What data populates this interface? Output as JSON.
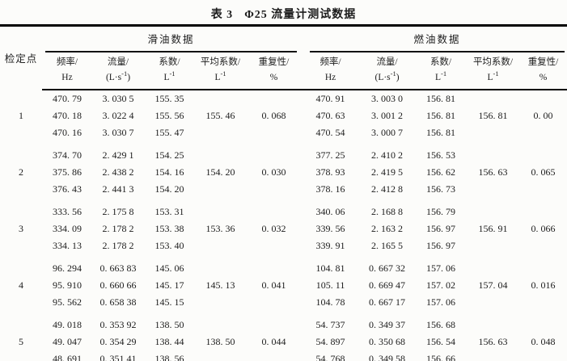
{
  "title": {
    "label": "表 3",
    "text": "Φ25 流量计测试数据"
  },
  "table": {
    "corner_header": "检定点",
    "group_headers": [
      "滑油数据",
      "燃油数据"
    ],
    "sub_headers": [
      {
        "top": "频率/",
        "base": "Hz",
        "exp": "",
        "post": ""
      },
      {
        "top": "流量/",
        "base": "(L·s",
        "exp": "-1",
        "post": ")"
      },
      {
        "top": "系数/",
        "base": "L",
        "exp": "-1",
        "post": ""
      },
      {
        "top": "平均系数/",
        "base": "L",
        "exp": "-1",
        "post": ""
      },
      {
        "top": "重复性/",
        "base": "%",
        "exp": "",
        "post": ""
      }
    ],
    "groups": [
      {
        "point": "1",
        "lub": {
          "rows": [
            [
              "470. 79",
              "3. 030 5",
              "155. 35"
            ],
            [
              "470. 18",
              "3. 022 4",
              "155. 56"
            ],
            [
              "470. 16",
              "3. 030 7",
              "155. 47"
            ]
          ],
          "avg": "155. 46",
          "rep": "0. 068"
        },
        "fuel": {
          "rows": [
            [
              "470. 91",
              "3. 003 0",
              "156. 81"
            ],
            [
              "470. 63",
              "3. 001 2",
              "156. 81"
            ],
            [
              "470. 54",
              "3. 000 7",
              "156. 81"
            ]
          ],
          "avg": "156. 81",
          "rep": "0. 00"
        }
      },
      {
        "point": "2",
        "lub": {
          "rows": [
            [
              "374. 70",
              "2. 429 1",
              "154. 25"
            ],
            [
              "375. 86",
              "2. 438 2",
              "154. 16"
            ],
            [
              "376. 43",
              "2. 441 3",
              "154. 20"
            ]
          ],
          "avg": "154. 20",
          "rep": "0. 030"
        },
        "fuel": {
          "rows": [
            [
              "377. 25",
              "2. 410 2",
              "156. 53"
            ],
            [
              "378. 93",
              "2. 419 5",
              "156. 62"
            ],
            [
              "378. 16",
              "2. 412 8",
              "156. 73"
            ]
          ],
          "avg": "156. 63",
          "rep": "0. 065"
        }
      },
      {
        "point": "3",
        "lub": {
          "rows": [
            [
              "333. 56",
              "2. 175 8",
              "153. 31"
            ],
            [
              "334. 09",
              "2. 178 2",
              "153. 38"
            ],
            [
              "334. 13",
              "2. 178 2",
              "153. 40"
            ]
          ],
          "avg": "153. 36",
          "rep": "0. 032"
        },
        "fuel": {
          "rows": [
            [
              "340. 06",
              "2. 168 8",
              "156. 79"
            ],
            [
              "339. 56",
              "2. 163 2",
              "156. 97"
            ],
            [
              "339. 91",
              "2. 165 5",
              "156. 97"
            ]
          ],
          "avg": "156. 91",
          "rep": "0. 066"
        }
      },
      {
        "point": "4",
        "lub": {
          "rows": [
            [
              "96. 294",
              "0. 663 83",
              "145. 06"
            ],
            [
              "95. 910",
              "0. 660 66",
              "145. 17"
            ],
            [
              "95. 562",
              "0. 658 38",
              "145. 15"
            ]
          ],
          "avg": "145. 13",
          "rep": "0. 041"
        },
        "fuel": {
          "rows": [
            [
              "104. 81",
              "0. 667 32",
              "157. 06"
            ],
            [
              "105. 11",
              "0. 669 47",
              "157. 02"
            ],
            [
              "104. 78",
              "0. 667 17",
              "157. 06"
            ]
          ],
          "avg": "157. 04",
          "rep": "0. 016"
        }
      },
      {
        "point": "5",
        "lub": {
          "rows": [
            [
              "49. 018",
              "0. 353 92",
              "138. 50"
            ],
            [
              "49. 047",
              "0. 354 29",
              "138. 44"
            ],
            [
              "48. 691",
              "0. 351 41",
              "138. 56"
            ]
          ],
          "avg": "138. 50",
          "rep": "0. 044"
        },
        "fuel": {
          "rows": [
            [
              "54. 737",
              "0. 349 37",
              "156. 68"
            ],
            [
              "54. 897",
              "0. 350 68",
              "156. 54"
            ],
            [
              "54. 768",
              "0. 349 58",
              "156. 66"
            ]
          ],
          "avg": "156. 63",
          "rep": "0. 048"
        }
      }
    ]
  }
}
